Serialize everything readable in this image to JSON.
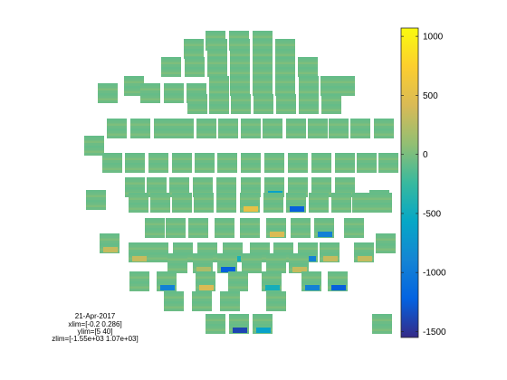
{
  "chart_data": {
    "type": "heatmap",
    "colormap": "parula",
    "colormap_stops": [
      "#352a87",
      "#0363e1",
      "#1485d4",
      "#06a7c6",
      "#38b99e",
      "#92bf73",
      "#d9ba56",
      "#fcce2e",
      "#f9fb0e"
    ],
    "colorbar": {
      "clim": [
        -1550,
        1070
      ],
      "ticks": [
        1000,
        500,
        0,
        -500,
        -1000,
        -1500
      ],
      "tick_labels": [
        "1000",
        "500",
        "0",
        "-500",
        "-1000",
        "-1500"
      ]
    },
    "info_lines": [
      "21-Apr-2017",
      "xlim=[-0.2 0.286]",
      "ylim=[5 40]",
      "zlim=[-1.55e+03 1.07e+03]"
    ],
    "channel_levels": [
      [
        0,
        0,
        0
      ],
      [
        0,
        0,
        0,
        0,
        0
      ],
      [
        0,
        0,
        0,
        0,
        0,
        0,
        0
      ],
      [
        0,
        0,
        0,
        0,
        0,
        0,
        0,
        0,
        0,
        0,
        0,
        0
      ],
      [
        0,
        0,
        0,
        0,
        0,
        0,
        0,
        0,
        0,
        0,
        0,
        0,
        0,
        0
      ],
      [
        0,
        0,
        0,
        0,
        0,
        0,
        0,
        0,
        0,
        0,
        0,
        0,
        0,
        0
      ],
      [
        0,
        0,
        0,
        0,
        0,
        0,
        0,
        0,
        0,
        0,
        0,
        0
      ],
      [
        -0.4,
        0,
        0,
        0,
        0,
        0,
        0,
        0,
        0,
        0,
        0,
        0.5
      ],
      [
        0,
        -0.8,
        0,
        0,
        0,
        0,
        0,
        0,
        0,
        0,
        0,
        0.4
      ],
      [
        0,
        -0.6,
        0,
        0.3,
        0,
        0.3,
        0,
        0,
        0,
        -0.3,
        0
      ],
      [
        0,
        -0.6,
        0.3,
        0.3,
        0,
        0.2,
        -0.8,
        0,
        0,
        0.3
      ],
      [
        0,
        -0.6,
        0.4,
        0,
        -0.3,
        -0.6,
        -0.8,
        0,
        0
      ],
      [
        0,
        0,
        0,
        -0.9,
        -0.4,
        0,
        0
      ],
      [
        0,
        -1,
        0
      ]
    ],
    "extra_channel_levels": [
      0
    ]
  }
}
